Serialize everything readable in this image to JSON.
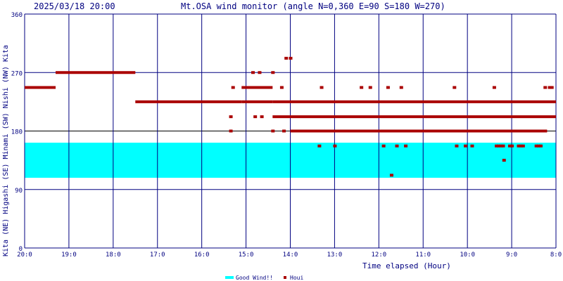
{
  "header": {
    "timestamp": "2025/03/18 20:00",
    "title": "Mt.OSA wind monitor (angle N=0,360 E=90 S=180 W=270)"
  },
  "side_label": "Kita (NE) Higashi (SE) Minami (SW) Nishi (NW) Kita",
  "legend": {
    "good": "Good Wind!!",
    "houi": "Houi"
  },
  "colors": {
    "good_band": "#00ffff",
    "points": "#aa0000",
    "grid": "#000080",
    "text": "#000080"
  },
  "chart_data": {
    "type": "scatter",
    "title": "Mt.OSA wind monitor (angle N=0,360 E=90 S=180 W=270)",
    "xlabel": "Time elapsed (Hour)",
    "ylabel": "Kita (NE) Higashi (SE) Minami (SW) Nishi (NW) Kita",
    "x_unit": "hours before 20:00",
    "xlim": [
      0,
      12
    ],
    "ylim": [
      0,
      360
    ],
    "x_ticks": [
      {
        "x": 0,
        "label": "20:0"
      },
      {
        "x": 1,
        "label": "19:0"
      },
      {
        "x": 2,
        "label": "18:0"
      },
      {
        "x": 3,
        "label": "17:0"
      },
      {
        "x": 4,
        "label": "16:0"
      },
      {
        "x": 5,
        "label": "15:0"
      },
      {
        "x": 6,
        "label": "14:0"
      },
      {
        "x": 7,
        "label": "13:0"
      },
      {
        "x": 8,
        "label": "12:0"
      },
      {
        "x": 9,
        "label": "11:0"
      },
      {
        "x": 10,
        "label": "10:0"
      },
      {
        "x": 11,
        "label": "9:0"
      },
      {
        "x": 12,
        "label": "8:0"
      }
    ],
    "y_ticks": [
      0,
      90,
      180,
      270,
      360
    ],
    "good_wind_band": [
      108,
      162
    ],
    "series": [
      {
        "name": "Houi",
        "segments": [
          {
            "x0": 0.0,
            "x1": 0.7,
            "y": 247
          },
          {
            "x0": 0.7,
            "x1": 2.5,
            "y": 270
          },
          {
            "x0": 2.5,
            "x1": 4.9,
            "y": 225
          },
          {
            "x0": 4.9,
            "x1": 5.6,
            "y": 225
          },
          {
            "x0": 4.9,
            "x1": 5.6,
            "y": 247
          },
          {
            "x0": 5.6,
            "x1": 12.0,
            "y": 225
          },
          {
            "x0": 5.6,
            "x1": 12.0,
            "y": 202
          },
          {
            "x0": 6.0,
            "x1": 11.8,
            "y": 180
          }
        ],
        "points": [
          {
            "x": 4.65,
            "y": 180
          },
          {
            "x": 4.65,
            "y": 202
          },
          {
            "x": 4.7,
            "y": 247
          },
          {
            "x": 5.15,
            "y": 270
          },
          {
            "x": 5.3,
            "y": 270
          },
          {
            "x": 5.6,
            "y": 270
          },
          {
            "x": 5.2,
            "y": 202
          },
          {
            "x": 5.35,
            "y": 202
          },
          {
            "x": 5.6,
            "y": 180
          },
          {
            "x": 5.85,
            "y": 180
          },
          {
            "x": 5.8,
            "y": 247
          },
          {
            "x": 5.9,
            "y": 292
          },
          {
            "x": 6.0,
            "y": 292
          },
          {
            "x": 6.65,
            "y": 157
          },
          {
            "x": 6.7,
            "y": 247
          },
          {
            "x": 7.0,
            "y": 157
          },
          {
            "x": 7.6,
            "y": 247
          },
          {
            "x": 7.8,
            "y": 247
          },
          {
            "x": 8.1,
            "y": 157
          },
          {
            "x": 8.2,
            "y": 247
          },
          {
            "x": 8.28,
            "y": 112
          },
          {
            "x": 8.4,
            "y": 157
          },
          {
            "x": 8.5,
            "y": 247
          },
          {
            "x": 8.6,
            "y": 157
          },
          {
            "x": 9.7,
            "y": 247
          },
          {
            "x": 9.75,
            "y": 157
          },
          {
            "x": 9.95,
            "y": 157
          },
          {
            "x": 10.1,
            "y": 157
          },
          {
            "x": 10.6,
            "y": 247
          },
          {
            "x": 10.65,
            "y": 157
          },
          {
            "x": 10.7,
            "y": 157
          },
          {
            "x": 10.75,
            "y": 157
          },
          {
            "x": 10.8,
            "y": 157
          },
          {
            "x": 10.82,
            "y": 135
          },
          {
            "x": 10.95,
            "y": 157
          },
          {
            "x": 11.0,
            "y": 157
          },
          {
            "x": 11.15,
            "y": 157
          },
          {
            "x": 11.2,
            "y": 157
          },
          {
            "x": 11.25,
            "y": 157
          },
          {
            "x": 11.55,
            "y": 157
          },
          {
            "x": 11.6,
            "y": 157
          },
          {
            "x": 11.65,
            "y": 157
          },
          {
            "x": 11.75,
            "y": 247
          },
          {
            "x": 11.85,
            "y": 247
          },
          {
            "x": 11.9,
            "y": 247
          }
        ]
      }
    ],
    "grid": true,
    "legend_position": "bottom-center"
  }
}
